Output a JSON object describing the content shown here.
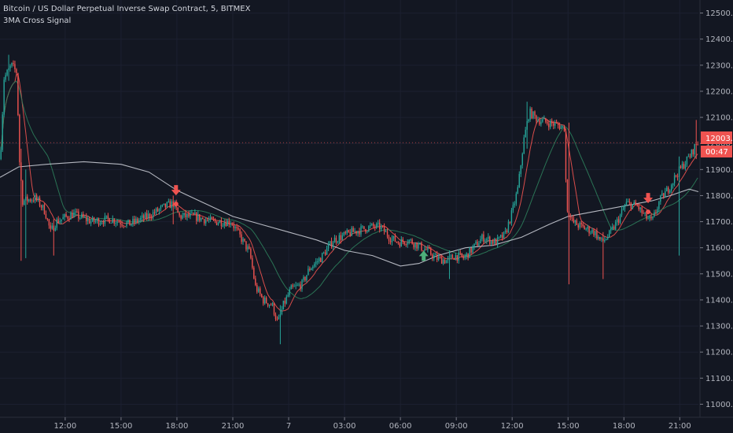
{
  "legend": {
    "title": "Bitcoin / US Dollar Perpetual Inverse Swap Contract, 5, BITMEX",
    "indicator": "3MA Cross Signal"
  },
  "colors": {
    "background": "#131722",
    "up": "#26a69a",
    "down": "#ef5350",
    "ma_fast": "#ef5350",
    "ma_mid": "#2e7d5b",
    "ma_slow": "#d1d4dc",
    "signal_sell": "#ef5350",
    "signal_buy": "#4caf7a",
    "price_tag": "#ef5350"
  },
  "chart_data": {
    "type": "candlestick",
    "title": "Bitcoin / US Dollar Perpetual Inverse Swap Contract, 5, BITMEX",
    "ylim": [
      10950,
      12550
    ],
    "y_ticks": [
      12500,
      12400,
      12300,
      12200,
      12100,
      12000,
      11900,
      11800,
      11700,
      11600,
      11500,
      11400,
      11300,
      11200,
      11100,
      11000
    ],
    "y_tick_labels": [
      "12500.0",
      "12400.0",
      "12300.0",
      "12200.0",
      "12100.0",
      "12000.0",
      "11900.0",
      "11800.0",
      "11700.0",
      "11600.0",
      "11500.0",
      "11400.0",
      "11300.0",
      "11200.0",
      "11100.0",
      "11000.0"
    ],
    "x_range_hours": [
      8.5,
      46.0
    ],
    "x_ticks": [
      {
        "label": "12:00",
        "h": 12
      },
      {
        "label": "15:00",
        "h": 15
      },
      {
        "label": "18:00",
        "h": 18
      },
      {
        "label": "21:00",
        "h": 21
      },
      {
        "label": "7",
        "h": 24
      },
      {
        "label": "03:00",
        "h": 27
      },
      {
        "label": "06:00",
        "h": 30
      },
      {
        "label": "09:00",
        "h": 33
      },
      {
        "label": "12:00",
        "h": 36
      },
      {
        "label": "15:00",
        "h": 39
      },
      {
        "label": "18:00",
        "h": 42
      },
      {
        "label": "21:00",
        "h": 45
      }
    ],
    "price_path": [
      [
        8.6,
        11940
      ],
      [
        8.8,
        12250
      ],
      [
        9.2,
        12300
      ],
      [
        9.5,
        12270
      ],
      [
        9.6,
        11960
      ],
      [
        9.8,
        11780
      ],
      [
        10.5,
        11790
      ],
      [
        11.0,
        11740
      ],
      [
        11.3,
        11660
      ],
      [
        11.6,
        11700
      ],
      [
        12.5,
        11730
      ],
      [
        13.5,
        11700
      ],
      [
        14.5,
        11710
      ],
      [
        15.5,
        11690
      ],
      [
        16.5,
        11720
      ],
      [
        17.5,
        11760
      ],
      [
        17.9,
        11770
      ],
      [
        18.2,
        11720
      ],
      [
        19.0,
        11720
      ],
      [
        20.0,
        11700
      ],
      [
        21.0,
        11700
      ],
      [
        21.5,
        11640
      ],
      [
        22.0,
        11580
      ],
      [
        22.3,
        11450
      ],
      [
        22.7,
        11400
      ],
      [
        23.2,
        11380
      ],
      [
        23.5,
        11310
      ],
      [
        23.8,
        11380
      ],
      [
        24.2,
        11440
      ],
      [
        24.8,
        11460
      ],
      [
        25.2,
        11520
      ],
      [
        25.8,
        11560
      ],
      [
        26.5,
        11630
      ],
      [
        27.5,
        11660
      ],
      [
        28.5,
        11680
      ],
      [
        29.0,
        11680
      ],
      [
        29.5,
        11640
      ],
      [
        30.0,
        11620
      ],
      [
        30.5,
        11630
      ],
      [
        31.0,
        11610
      ],
      [
        31.5,
        11590
      ],
      [
        32.0,
        11560
      ],
      [
        32.6,
        11550
      ],
      [
        33.0,
        11570
      ],
      [
        33.5,
        11560
      ],
      [
        34.0,
        11600
      ],
      [
        34.5,
        11640
      ],
      [
        35.2,
        11620
      ],
      [
        35.7,
        11650
      ],
      [
        36.1,
        11740
      ],
      [
        36.4,
        11830
      ],
      [
        36.7,
        12010
      ],
      [
        37.0,
        12120
      ],
      [
        37.5,
        12090
      ],
      [
        38.5,
        12070
      ],
      [
        38.9,
        12060
      ],
      [
        39.0,
        11760
      ],
      [
        39.3,
        11700
      ],
      [
        39.8,
        11680
      ],
      [
        40.5,
        11660
      ],
      [
        40.9,
        11620
      ],
      [
        41.3,
        11650
      ],
      [
        41.8,
        11710
      ],
      [
        42.2,
        11770
      ],
      [
        42.8,
        11760
      ],
      [
        43.2,
        11720
      ],
      [
        43.6,
        11700
      ],
      [
        44.0,
        11780
      ],
      [
        44.5,
        11830
      ],
      [
        44.9,
        11880
      ],
      [
        45.3,
        11920
      ],
      [
        45.7,
        11960
      ],
      [
        46.0,
        12003
      ]
    ],
    "spikes": [
      {
        "h": 9.0,
        "high": 12340,
        "low": 12240
      },
      {
        "h": 9.65,
        "high": 11980,
        "low": 11550
      },
      {
        "h": 9.9,
        "high": 11900,
        "low": 11560
      },
      {
        "h": 11.4,
        "high": 11710,
        "low": 11570
      },
      {
        "h": 17.8,
        "high": 11800,
        "low": 11690
      },
      {
        "h": 23.55,
        "high": 11380,
        "low": 11230
      },
      {
        "h": 32.6,
        "high": 11590,
        "low": 11480
      },
      {
        "h": 36.8,
        "high": 12160,
        "low": 11980
      },
      {
        "h": 39.05,
        "high": 12080,
        "low": 11460
      },
      {
        "h": 40.9,
        "high": 11660,
        "low": 11480
      },
      {
        "h": 45.0,
        "high": 11950,
        "low": 11570
      },
      {
        "h": 45.9,
        "high": 12090,
        "low": 11940
      }
    ],
    "ma_slow_path": [
      [
        8.5,
        11870
      ],
      [
        9.5,
        11910
      ],
      [
        11.0,
        11920
      ],
      [
        13.0,
        11930
      ],
      [
        15.0,
        11920
      ],
      [
        16.5,
        11890
      ],
      [
        18.0,
        11820
      ],
      [
        19.5,
        11770
      ],
      [
        21.0,
        11720
      ],
      [
        22.5,
        11690
      ],
      [
        24.0,
        11660
      ],
      [
        25.5,
        11630
      ],
      [
        27.0,
        11590
      ],
      [
        28.5,
        11570
      ],
      [
        30.0,
        11530
      ],
      [
        31.0,
        11540
      ],
      [
        32.0,
        11570
      ],
      [
        33.5,
        11600
      ],
      [
        35.0,
        11610
      ],
      [
        36.5,
        11640
      ],
      [
        38.0,
        11690
      ],
      [
        39.0,
        11720
      ],
      [
        40.5,
        11740
      ],
      [
        42.0,
        11760
      ],
      [
        43.5,
        11780
      ],
      [
        44.5,
        11800
      ],
      [
        45.5,
        11825
      ],
      [
        46.0,
        11815
      ]
    ],
    "signals": [
      {
        "type": "sell",
        "h": 17.95,
        "price": 11810
      },
      {
        "type": "buy",
        "h": 31.25,
        "price": 11580
      },
      {
        "type": "sell",
        "h": 43.3,
        "price": 11780
      }
    ],
    "last_price": {
      "value": "12003.0",
      "countdown": "00:47",
      "price": 12003
    }
  }
}
